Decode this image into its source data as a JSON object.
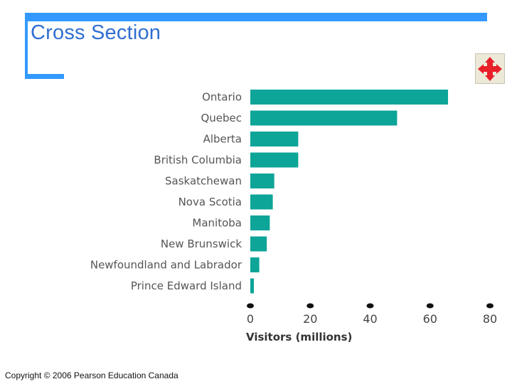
{
  "slide": {
    "title": "Cross Section",
    "copyright": "Copyright © 2006 Pearson Education Canada",
    "accent_color": "#3399ff",
    "title_color": "#2f6fd1"
  },
  "nav_button": {
    "icon": "move-arrows-icon",
    "color": "#e8202a"
  },
  "chart_data": {
    "type": "bar",
    "orientation": "horizontal",
    "categories": [
      "Ontario",
      "Quebec",
      "Alberta",
      "British Columbia",
      "Saskatchewan",
      "Nova Scotia",
      "Manitoba",
      "New Brunswick",
      "Newfoundland and Labrador",
      "Prince Edward Island"
    ],
    "values": [
      66,
      49,
      16,
      16,
      8,
      7.5,
      6.5,
      5.5,
      3,
      1.2
    ],
    "xlabel": "Visitors (millions)",
    "ylabel": "",
    "xlim": [
      0,
      80
    ],
    "xticks": [
      0,
      20,
      40,
      60,
      80
    ],
    "bar_color": "#0da598",
    "grid": false
  }
}
